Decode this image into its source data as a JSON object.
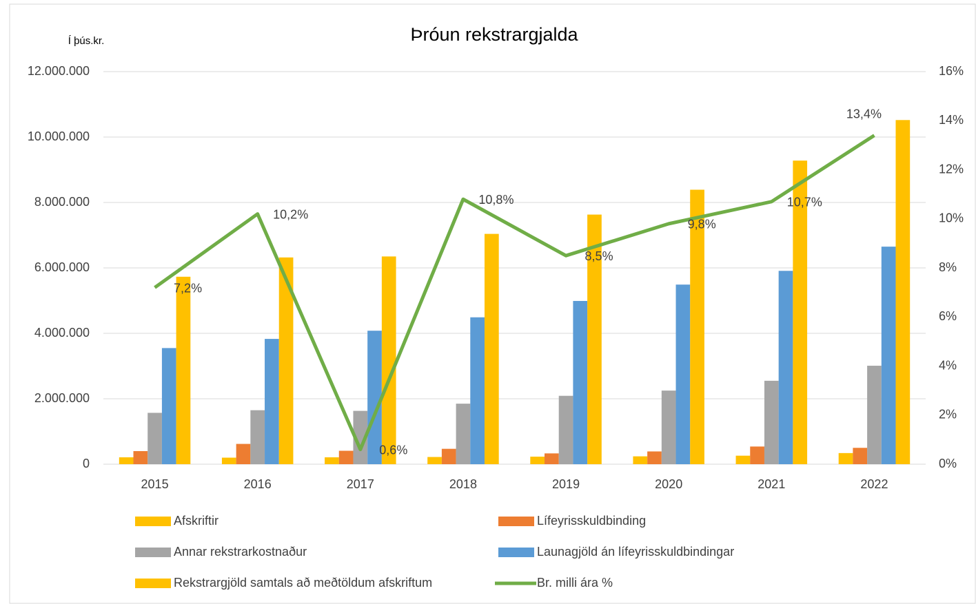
{
  "chart_data": {
    "type": "bar",
    "title": "Þróun rekstrargjalda",
    "y_label": "Í þús.kr.",
    "categories": [
      "2015",
      "2016",
      "2017",
      "2018",
      "2019",
      "2020",
      "2021",
      "2022"
    ],
    "series": [
      {
        "name": "Afskriftir",
        "color": "#ffc000",
        "values": [
          210000,
          200000,
          210000,
          220000,
          230000,
          240000,
          260000,
          340000
        ]
      },
      {
        "name": "Lífeyrisskuldbinding",
        "color": "#ed7d31",
        "values": [
          400000,
          620000,
          410000,
          470000,
          330000,
          390000,
          540000,
          500000
        ]
      },
      {
        "name": "Annar rekstrarkostnaður",
        "color": "#a5a5a5",
        "values": [
          1570000,
          1650000,
          1630000,
          1850000,
          2090000,
          2250000,
          2550000,
          3010000
        ]
      },
      {
        "name": "Launagjöld án lífeyrisskuldbindingar",
        "color": "#5b9bd5",
        "values": [
          3550000,
          3830000,
          4080000,
          4490000,
          4990000,
          5490000,
          5910000,
          6650000
        ]
      },
      {
        "name": "Rekstrargjöld samtals að meðtöldum afskriftum",
        "color": "#ffc000",
        "values": [
          5730000,
          6320000,
          6350000,
          7040000,
          7630000,
          8390000,
          9280000,
          10520000
        ]
      },
      {
        "name": "Br. milli ára %",
        "color": "#70ad47",
        "type": "line",
        "axis": "y2",
        "values": [
          7.2,
          10.2,
          0.6,
          10.8,
          8.5,
          9.8,
          10.7,
          13.4
        ],
        "value_labels": [
          "7,2%",
          "10,2%",
          "0,6%",
          "10,8%",
          "8,5%",
          "9,8%",
          "10,7%",
          "13,4%"
        ]
      }
    ],
    "ylim": [
      0,
      12000000
    ],
    "yticks": [
      0,
      {
        "value": 2000000,
        "label": "2.000.000"
      },
      {
        "value": 4000000,
        "label": "4.000.000"
      },
      {
        "value": 6000000,
        "label": "6.000.000"
      },
      {
        "value": 8000000,
        "label": "8.000.000"
      },
      {
        "value": 10000000,
        "label": "10.000.000"
      },
      {
        "value": 12000000,
        "label": "12.000.000"
      }
    ],
    "y2lim": [
      0,
      16
    ],
    "y2ticks": [
      {
        "value": 0,
        "label": "0%"
      },
      {
        "value": 2,
        "label": "2%"
      },
      {
        "value": 4,
        "label": "4%"
      },
      {
        "value": 6,
        "label": "6%"
      },
      {
        "value": 8,
        "label": "8%"
      },
      {
        "value": 10,
        "label": "10%"
      },
      {
        "value": 12,
        "label": "12%"
      },
      {
        "value": 14,
        "label": "14%"
      },
      {
        "value": 16,
        "label": "16%"
      }
    ],
    "grid": true
  }
}
